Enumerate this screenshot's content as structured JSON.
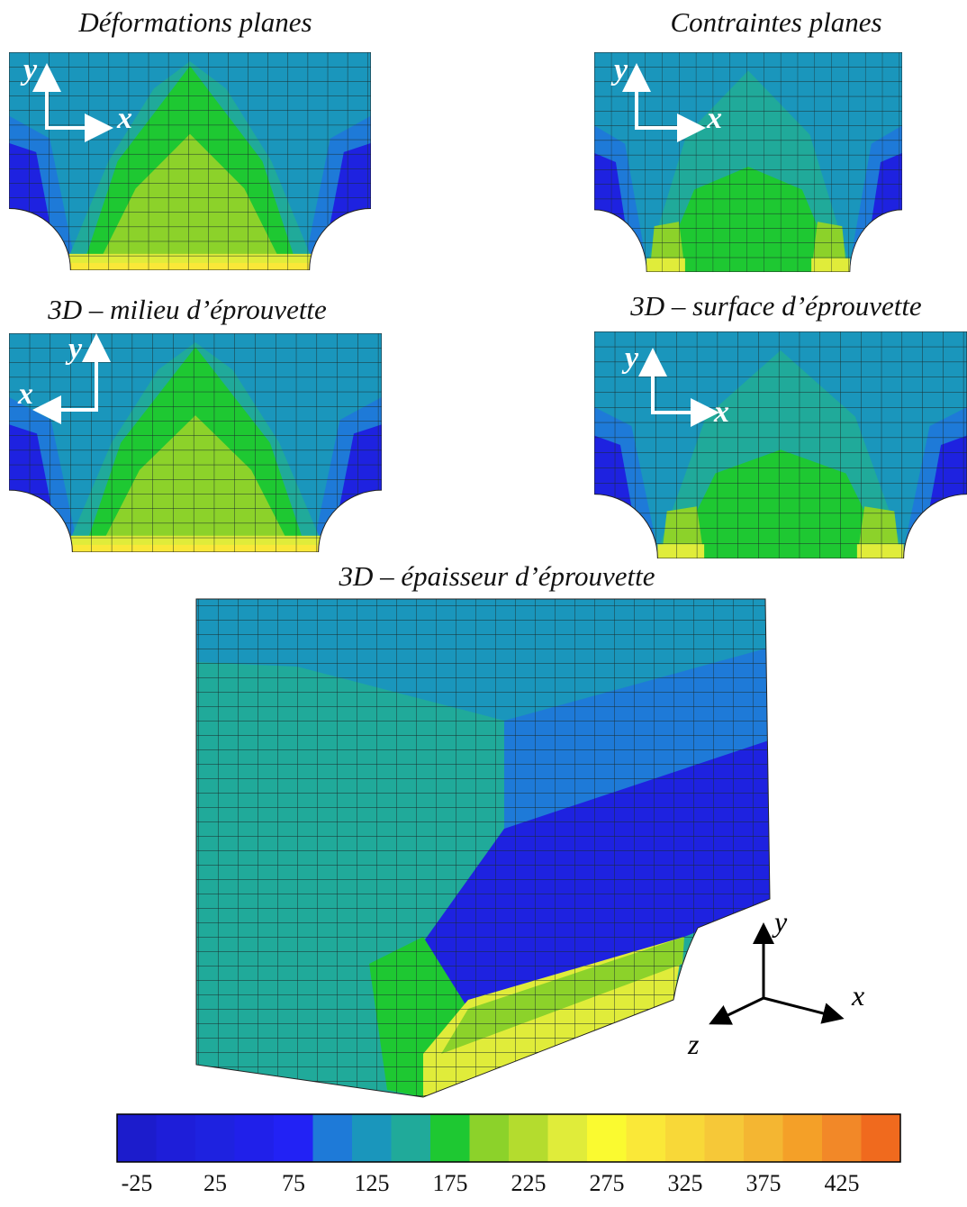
{
  "panels": [
    {
      "title": "Déformations planes",
      "axes": [
        "y",
        "x"
      ]
    },
    {
      "title": "Contraintes planes",
      "axes": [
        "y",
        "x"
      ]
    },
    {
      "title": "3D – milieu d’éprouvette",
      "axes": [
        "y",
        "x"
      ]
    },
    {
      "title": "3D – surface d’éprouvette",
      "axes": [
        "y",
        "x"
      ]
    }
  ],
  "main_panel": {
    "title": "3D – épaisseur d’éprouvette",
    "axes": [
      "y",
      "x",
      "z"
    ]
  },
  "colorbar": {
    "colors": [
      "#1c1ccc",
      "#1e1ed9",
      "#1e22e0",
      "#2020ea",
      "#2222f5",
      "#1e7ad8",
      "#1a96bc",
      "#20aa9a",
      "#1ec832",
      "#8cd22a",
      "#b4dc2e",
      "#e0ec3a",
      "#fafa30",
      "#fae838",
      "#f8d838",
      "#f6c838",
      "#f4b632",
      "#f4a028",
      "#f28828",
      "#f06a1e"
    ],
    "ticks": [
      -25,
      25,
      75,
      125,
      175,
      225,
      275,
      325,
      375,
      425
    ]
  }
}
